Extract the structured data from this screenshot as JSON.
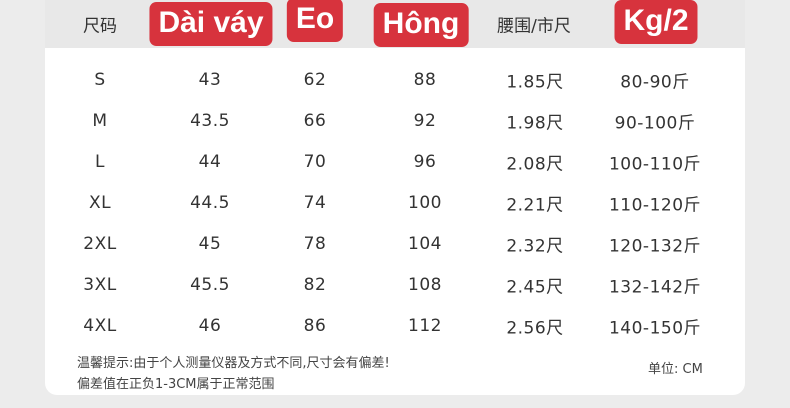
{
  "table": {
    "headers": [
      "尺码",
      "Dài váy",
      "Eo",
      "Hông",
      "腰围/市尺",
      "Kg/2"
    ],
    "rows": [
      [
        "S",
        "43",
        "62",
        "88",
        "1.85尺",
        "80-90斤"
      ],
      [
        "M",
        "43.5",
        "66",
        "92",
        "1.98尺",
        "90-100斤"
      ],
      [
        "L",
        "44",
        "70",
        "96",
        "2.08尺",
        "100-110斤"
      ],
      [
        "XL",
        "44.5",
        "74",
        "100",
        "2.21尺",
        "110-120斤"
      ],
      [
        "2XL",
        "45",
        "78",
        "104",
        "2.32尺",
        "120-132斤"
      ],
      [
        "3XL",
        "45.5",
        "82",
        "108",
        "2.45尺",
        "132-142斤"
      ],
      [
        "4XL",
        "46",
        "86",
        "112",
        "2.56尺",
        "140-150斤"
      ]
    ]
  },
  "notes": [
    "温馨提示:由于个人测量仪器及方式不同,尺寸会有偏差!",
    "偏差值在正负1-3CM属于正常范围"
  ],
  "unit": "单位: CM"
}
